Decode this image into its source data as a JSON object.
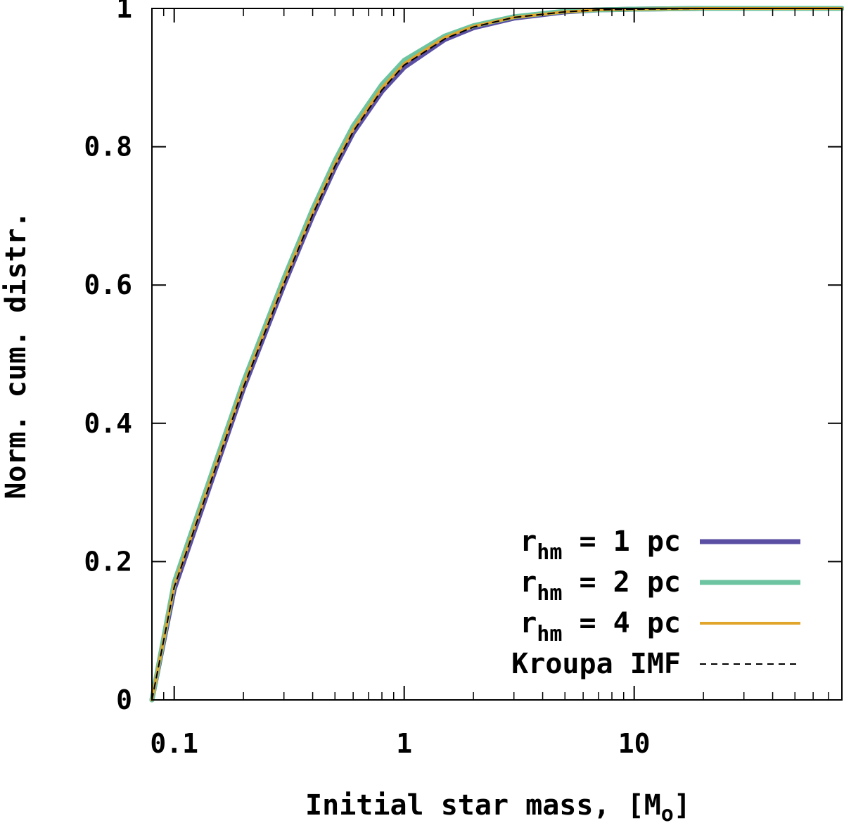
{
  "chart_data": {
    "type": "line",
    "title": "",
    "xlabel": "Initial star mass, [M",
    "xlabel_sub": "o",
    "xlabel_end": "]",
    "ylabel": "Norm. cum. distr.",
    "xscale": "log",
    "xlim": [
      0.08,
      80
    ],
    "ylim": [
      0,
      1
    ],
    "xticks": [
      0.1,
      1,
      10
    ],
    "xtick_labels": [
      "0.1",
      "1",
      "10"
    ],
    "yticks": [
      0,
      0.2,
      0.4,
      0.6,
      0.8,
      1
    ],
    "ytick_labels": [
      "0",
      "0.2",
      "0.4",
      "0.6",
      "0.8",
      "1"
    ],
    "grid": false,
    "legend_position": "bottom-right",
    "x": [
      0.08,
      0.1,
      0.15,
      0.2,
      0.3,
      0.4,
      0.5,
      0.6,
      0.8,
      1,
      1.5,
      2,
      3,
      5,
      7,
      10,
      20,
      40,
      80
    ],
    "series": [
      {
        "name": "r_hm = 1 pc",
        "label_main": "r",
        "label_sub": "hm",
        "label_rest": " = 1 pc",
        "color": "#5a4fa3",
        "width": 7,
        "dash": "",
        "values": [
          0,
          0.16,
          0.33,
          0.45,
          0.6,
          0.7,
          0.77,
          0.82,
          0.88,
          0.915,
          0.955,
          0.972,
          0.986,
          0.995,
          0.998,
          0.999,
          1.0,
          1.0,
          1.0
        ]
      },
      {
        "name": "r_hm = 2 pc",
        "label_main": "r",
        "label_sub": "hm",
        "label_rest": " = 2 pc",
        "color": "#6cc4a0",
        "width": 7,
        "dash": "",
        "values": [
          0,
          0.17,
          0.34,
          0.46,
          0.61,
          0.71,
          0.78,
          0.83,
          0.89,
          0.925,
          0.96,
          0.975,
          0.988,
          0.996,
          0.998,
          0.999,
          1.0,
          1.0,
          1.0
        ]
      },
      {
        "name": "r_hm = 4 pc",
        "label_main": "r",
        "label_sub": "hm",
        "label_rest": " = 4 pc",
        "color": "#e1a52b",
        "width": 4,
        "dash": "",
        "values": [
          0,
          0.165,
          0.335,
          0.455,
          0.605,
          0.705,
          0.775,
          0.825,
          0.885,
          0.92,
          0.958,
          0.974,
          0.987,
          0.995,
          0.998,
          0.999,
          1.0,
          1.0,
          1.0
        ]
      },
      {
        "name": "Kroupa IMF",
        "label_main": "Kroupa IMF",
        "label_sub": "",
        "label_rest": "",
        "color": "#000000",
        "width": 2,
        "dash": "9,7",
        "values": [
          0,
          0.163,
          0.332,
          0.452,
          0.602,
          0.702,
          0.772,
          0.822,
          0.882,
          0.918,
          0.956,
          0.973,
          0.987,
          0.995,
          0.998,
          0.999,
          1.0,
          1.0,
          1.0
        ]
      }
    ]
  }
}
